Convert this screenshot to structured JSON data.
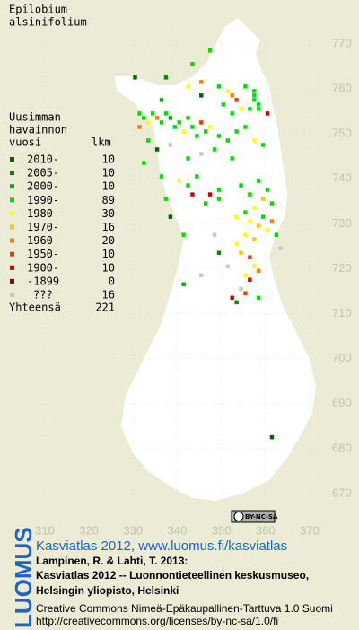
{
  "title": [
    "Epilobium",
    "alsinifolium"
  ],
  "legend": {
    "heading": [
      "Uusimman",
      "havainnon",
      "vuosi"
    ],
    "count_heading": "lkm",
    "rows": [
      {
        "label": "2010-",
        "count": 10,
        "color": "#006400"
      },
      {
        "label": "2005-",
        "count": 10,
        "color": "#008c00"
      },
      {
        "label": "2000-",
        "count": 10,
        "color": "#00b400"
      },
      {
        "label": "1990-",
        "count": 89,
        "color": "#00e000"
      },
      {
        "label": "1980-",
        "count": 30,
        "color": "#ffff00"
      },
      {
        "label": "1970-",
        "count": 16,
        "color": "#ffc800"
      },
      {
        "label": "1960-",
        "count": 20,
        "color": "#ff8000"
      },
      {
        "label": "1950-",
        "count": 10,
        "color": "#e83c00"
      },
      {
        "label": "1900-",
        "count": 10,
        "color": "#d00000"
      },
      {
        "label": "-1899",
        "count": 0,
        "color": "#900000"
      },
      {
        "label": "???",
        "count": 16,
        "color": "#c8c8c8"
      }
    ],
    "total_label": "Yhteensä",
    "total": 221
  },
  "axes": {
    "xticks": [
      310,
      320,
      330,
      340,
      350,
      360,
      370
    ],
    "yticks": [
      770,
      760,
      750,
      740,
      730,
      720,
      710,
      700,
      690,
      680,
      670
    ]
  },
  "squares": [
    [
      347,
      769,
      3
    ],
    [
      343,
      766,
      3
    ],
    [
      330,
      763,
      0
    ],
    [
      337,
      763,
      1
    ],
    [
      345,
      762,
      6
    ],
    [
      342,
      761,
      4
    ],
    [
      349,
      761,
      3
    ],
    [
      336,
      758,
      2
    ],
    [
      345,
      759,
      0
    ],
    [
      352,
      759,
      6
    ],
    [
      353,
      758,
      7
    ],
    [
      351,
      760,
      4
    ],
    [
      355,
      761,
      3
    ],
    [
      357,
      760,
      3
    ],
    [
      357,
      759,
      3
    ],
    [
      357,
      758,
      3
    ],
    [
      358,
      757,
      3
    ],
    [
      358,
      756,
      3
    ],
    [
      360,
      755,
      8
    ],
    [
      356,
      756,
      3
    ],
    [
      354,
      756,
      4
    ],
    [
      352,
      755,
      3
    ],
    [
      350,
      757,
      3
    ],
    [
      331,
      755,
      3
    ],
    [
      332,
      754,
      3
    ],
    [
      333,
      753,
      4
    ],
    [
      334,
      755,
      3
    ],
    [
      335,
      754,
      6
    ],
    [
      336,
      753,
      3
    ],
    [
      337,
      755,
      3
    ],
    [
      338,
      754,
      2
    ],
    [
      339,
      752,
      3
    ],
    [
      340,
      753,
      3
    ],
    [
      341,
      751,
      4
    ],
    [
      342,
      754,
      3
    ],
    [
      343,
      752,
      3
    ],
    [
      344,
      750,
      3
    ],
    [
      345,
      753,
      7
    ],
    [
      346,
      751,
      3
    ],
    [
      347,
      752,
      4
    ],
    [
      349,
      750,
      3
    ],
    [
      351,
      749,
      3
    ],
    [
      353,
      751,
      3
    ],
    [
      355,
      752,
      3
    ],
    [
      357,
      749,
      4
    ],
    [
      359,
      748,
      3
    ],
    [
      333,
      749,
      3
    ],
    [
      335,
      747,
      0
    ],
    [
      338,
      748,
      10
    ],
    [
      342,
      745,
      3
    ],
    [
      345,
      746,
      10
    ],
    [
      348,
      747,
      3
    ],
    [
      352,
      745,
      3
    ],
    [
      332,
      744,
      3
    ],
    [
      336,
      741,
      3
    ],
    [
      340,
      740,
      4
    ],
    [
      342,
      739,
      3
    ],
    [
      344,
      741,
      3
    ],
    [
      347,
      737,
      8
    ],
    [
      349,
      738,
      3
    ],
    [
      354,
      739,
      3
    ],
    [
      356,
      737,
      3
    ],
    [
      358,
      740,
      3
    ],
    [
      359,
      736,
      5
    ],
    [
      360,
      738,
      3
    ],
    [
      361,
      735,
      3
    ],
    [
      357,
      734,
      4
    ],
    [
      355,
      733,
      3
    ],
    [
      353,
      732,
      4
    ],
    [
      349,
      736,
      3
    ],
    [
      346,
      735,
      3
    ],
    [
      343,
      737,
      8
    ],
    [
      356,
      731,
      4
    ],
    [
      358,
      730,
      5
    ],
    [
      359,
      732,
      3
    ],
    [
      360,
      729,
      4
    ],
    [
      361,
      731,
      6
    ],
    [
      362,
      728,
      3
    ],
    [
      357,
      727,
      5
    ],
    [
      355,
      728,
      4
    ],
    [
      353,
      726,
      4
    ],
    [
      354,
      724,
      5
    ],
    [
      356,
      723,
      7
    ],
    [
      357,
      721,
      4
    ],
    [
      358,
      720,
      6
    ],
    [
      355,
      719,
      4
    ],
    [
      356,
      718,
      8
    ],
    [
      354,
      716,
      10
    ],
    [
      355,
      715,
      7
    ],
    [
      352,
      714,
      8
    ],
    [
      353,
      713,
      1
    ],
    [
      358,
      714,
      3
    ],
    [
      337,
      736,
      3
    ],
    [
      338,
      732,
      0
    ],
    [
      341,
      728,
      3
    ],
    [
      349,
      724,
      1
    ],
    [
      341,
      717,
      2
    ],
    [
      345,
      719,
      10
    ],
    [
      361,
      683,
      0
    ],
    [
      331,
      752,
      6
    ],
    [
      348,
      728,
      10
    ],
    [
      363,
      725,
      10
    ],
    [
      351,
      721,
      10
    ]
  ],
  "badge": "BY-NC-SA",
  "footer": {
    "brand": "LUOMUS",
    "headline": "Kasviatlas 2012, www.luomus.fi/kasviatlas",
    "citation": [
      "Lampinen, R. & Lahti, T. 2013:",
      "Kasviatlas 2012 -- Luonnontieteellinen keskusmuseo,",
      "Helsingin yliopisto, Helsinki"
    ],
    "license": [
      "Creative Commons Nimeä-Epäkaupallinen-Tarttuva 1.0 Suomi",
      "http://creativecommons.org/licenses/by-nc-sa/1.0/fi"
    ]
  }
}
